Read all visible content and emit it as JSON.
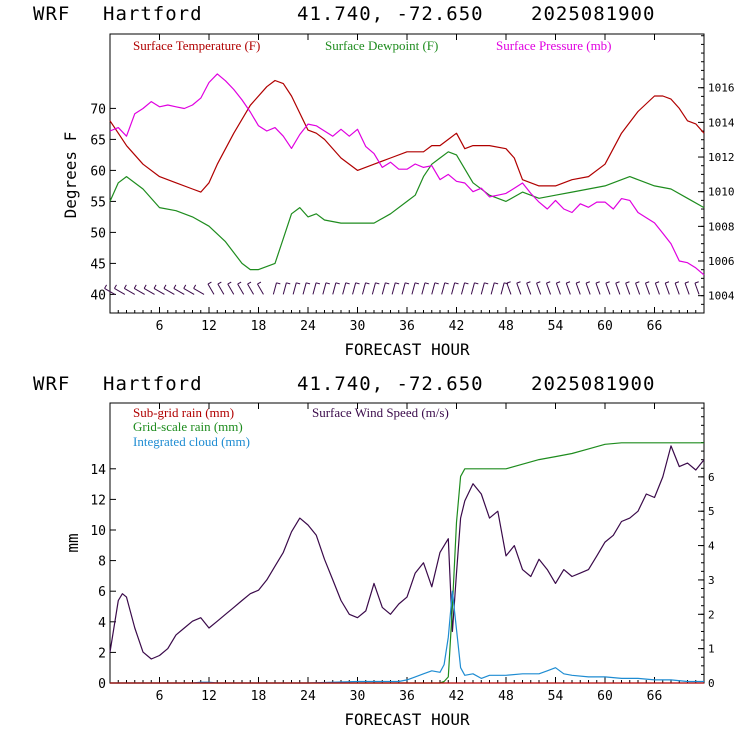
{
  "chart_data": [
    {
      "type": "line",
      "header": {
        "model": "WRF",
        "location": "Hartford",
        "coords": "41.740, -72.650",
        "date": "2025081900"
      },
      "xlabel": "FORECAST HOUR",
      "ylabel": "Degrees F",
      "y2label": "",
      "xlim": [
        0,
        72
      ],
      "ylim": [
        37,
        82
      ],
      "y2lim": [
        1003,
        1019.1
      ],
      "x_ticks": [
        6,
        12,
        18,
        24,
        30,
        36,
        42,
        48,
        54,
        60,
        66
      ],
      "y_ticks": [
        40,
        45,
        50,
        55,
        60,
        65,
        70
      ],
      "y2_ticks": [
        1004,
        1006,
        1008,
        1010,
        1012,
        1014,
        1016
      ],
      "legend": [
        {
          "name": "Surface Temperature (F)",
          "color": "#b00000"
        },
        {
          "name": "Surface Dewpoint (F)",
          "color": "#1e8c1e"
        },
        {
          "name": "Surface Pressure (mb)",
          "color": "#e000e0"
        }
      ],
      "series": [
        {
          "name": "Surface Temperature (F)",
          "axis": "left",
          "color": "#b00000",
          "x": [
            0,
            1,
            2,
            4,
            6,
            8,
            10,
            11,
            12,
            13,
            15,
            17,
            19,
            20,
            21,
            22,
            24,
            25,
            26,
            28,
            30,
            32,
            34,
            36,
            38,
            39,
            40,
            41,
            42,
            43,
            44,
            46,
            48,
            49,
            50,
            52,
            54,
            56,
            58,
            60,
            62,
            64,
            66,
            67,
            68,
            69,
            70,
            71,
            72
          ],
          "y": [
            68,
            66,
            64,
            61,
            59,
            58,
            57,
            56.5,
            58,
            61,
            66,
            70.5,
            73.5,
            74.5,
            74,
            72,
            66.5,
            66,
            65,
            62,
            60,
            61,
            62,
            63,
            63,
            64,
            64,
            65,
            66,
            63.5,
            64,
            64,
            63.5,
            62,
            58.5,
            57.5,
            57.5,
            58.5,
            59,
            61,
            66,
            69.5,
            72,
            72,
            71.5,
            70,
            68,
            67.5,
            66
          ]
        },
        {
          "name": "Surface Dewpoint (F)",
          "axis": "left",
          "color": "#1e8c1e",
          "x": [
            0,
            1,
            2,
            4,
            6,
            8,
            10,
            12,
            14,
            16,
            17,
            18,
            20,
            21,
            22,
            23,
            24,
            25,
            26,
            28,
            30,
            32,
            34,
            36,
            37,
            38,
            39,
            40,
            41,
            42,
            44,
            46,
            48,
            50,
            52,
            54,
            56,
            58,
            60,
            62,
            63,
            64,
            66,
            68,
            70,
            72
          ],
          "y": [
            55,
            58,
            59,
            57,
            54,
            53.5,
            52.5,
            51,
            48.5,
            45,
            44,
            44,
            45,
            49,
            53,
            54,
            52.5,
            53,
            52,
            51.5,
            51.5,
            51.5,
            53,
            55,
            56,
            59,
            61,
            62,
            63,
            62.5,
            58,
            56,
            55,
            56.5,
            55.5,
            56,
            56.5,
            57,
            57.5,
            58.5,
            59,
            58.5,
            57.5,
            57,
            55.5,
            54
          ]
        },
        {
          "name": "Surface Pressure (mb)",
          "axis": "right",
          "color": "#e000e0",
          "x": [
            0,
            1,
            2,
            3,
            4,
            5,
            6,
            7,
            8,
            9,
            10,
            11,
            12,
            13,
            14,
            15,
            16,
            17,
            18,
            19,
            20,
            21,
            22,
            23,
            24,
            25,
            26,
            27,
            28,
            29,
            30,
            31,
            32,
            33,
            34,
            35,
            36,
            37,
            38,
            39,
            40,
            41,
            42,
            43,
            44,
            45,
            46,
            47,
            48,
            49,
            50,
            51,
            52,
            53,
            54,
            55,
            56,
            57,
            58,
            59,
            60,
            61,
            62,
            63,
            64,
            65,
            66,
            67,
            68,
            69,
            70,
            71,
            72
          ],
          "y": [
            1013.5,
            1013.7,
            1013.2,
            1014.5,
            1014.8,
            1015.2,
            1014.9,
            1015.0,
            1014.9,
            1014.8,
            1015.0,
            1015.4,
            1016.3,
            1016.8,
            1016.4,
            1015.9,
            1015.3,
            1014.6,
            1013.8,
            1013.5,
            1013.7,
            1013.2,
            1012.5,
            1013.3,
            1013.9,
            1013.8,
            1013.5,
            1013.2,
            1013.6,
            1013.2,
            1013.6,
            1012.6,
            1012.2,
            1011.4,
            1011.7,
            1011.3,
            1011.3,
            1011.6,
            1011.4,
            1011.5,
            1010.7,
            1011.0,
            1010.6,
            1010.5,
            1010.0,
            1010.2,
            1009.7,
            1009.8,
            1009.9,
            1010.2,
            1010.5,
            1009.9,
            1009.4,
            1009.0,
            1009.5,
            1009.0,
            1008.8,
            1009.3,
            1009.1,
            1009.4,
            1009.4,
            1009.0,
            1009.6,
            1009.5,
            1008.8,
            1008.5,
            1008.2,
            1007.6,
            1007.0,
            1006.0,
            1005.9,
            1005.6,
            1005.2
          ]
        }
      ],
      "wind_barbs": {
        "y_level": 40,
        "count": 60
      }
    },
    {
      "type": "line",
      "header": {
        "model": "WRF",
        "location": "Hartford",
        "coords": "41.740, -72.650",
        "date": "2025081900"
      },
      "xlabel": "FORECAST HOUR",
      "ylabel": "mm",
      "y2label": "",
      "xlim": [
        0,
        72
      ],
      "ylim": [
        0,
        18.3
      ],
      "y2lim": [
        0,
        8.15
      ],
      "x_ticks": [
        6,
        12,
        18,
        24,
        30,
        36,
        42,
        48,
        54,
        60,
        66
      ],
      "y_ticks": [
        0,
        2,
        4,
        6,
        8,
        10,
        12,
        14
      ],
      "y2_ticks": [
        0,
        1,
        2,
        3,
        4,
        5,
        6
      ],
      "legend": [
        {
          "name": "Sub-grid rain (mm)",
          "color": "#b00000"
        },
        {
          "name": "Grid-scale rain (mm)",
          "color": "#1e8c1e"
        },
        {
          "name": "Integrated cloud (mm)",
          "color": "#1e8cd2"
        },
        {
          "name": "Surface Wind Speed (m/s)",
          "color": "#3a0a4a"
        }
      ],
      "series": [
        {
          "name": "Surface Wind Speed (m/s)",
          "axis": "right",
          "color": "#3a0a4a",
          "x": [
            0,
            1,
            1.5,
            2,
            3,
            4,
            5,
            6,
            7,
            8,
            9,
            10,
            11,
            12,
            13,
            14,
            15,
            16,
            17,
            18,
            19,
            20,
            21,
            22,
            23,
            24,
            25,
            26,
            27,
            28,
            29,
            30,
            31,
            32,
            33,
            34,
            35,
            36,
            37,
            38,
            39,
            40,
            41,
            41.5,
            42,
            42.5,
            43,
            44,
            45,
            46,
            47,
            48,
            49,
            50,
            51,
            52,
            53,
            54,
            55,
            56,
            57,
            58,
            59,
            60,
            61,
            62,
            63,
            64,
            65,
            66,
            67,
            68,
            69,
            70,
            71,
            72
          ],
          "y": [
            0.9,
            2.4,
            2.6,
            2.5,
            1.6,
            0.9,
            0.7,
            0.8,
            1.0,
            1.4,
            1.6,
            1.8,
            1.9,
            1.6,
            1.8,
            2.0,
            2.2,
            2.4,
            2.6,
            2.7,
            3.0,
            3.4,
            3.8,
            4.4,
            4.8,
            4.6,
            4.3,
            3.6,
            3.0,
            2.4,
            2.0,
            1.9,
            2.1,
            2.9,
            2.2,
            2.0,
            2.3,
            2.5,
            3.2,
            3.5,
            2.8,
            3.8,
            4.2,
            1.5,
            3.2,
            4.8,
            5.3,
            5.8,
            5.5,
            4.8,
            5.0,
            3.7,
            4.0,
            3.3,
            3.1,
            3.6,
            3.3,
            2.9,
            3.3,
            3.1,
            3.2,
            3.3,
            3.7,
            4.1,
            4.3,
            4.7,
            4.8,
            5.0,
            5.5,
            5.4,
            6.0,
            6.9,
            6.3,
            6.4,
            6.2,
            6.5
          ]
        },
        {
          "name": "Grid-scale rain (mm)",
          "axis": "left",
          "color": "#1e8c1e",
          "x": [
            0,
            40,
            40.5,
            41,
            41.5,
            42,
            42.5,
            43,
            44,
            48,
            50,
            52,
            54,
            56,
            58,
            60,
            62,
            64,
            66,
            68,
            70,
            72
          ],
          "y": [
            0,
            0,
            0.1,
            0.4,
            5.0,
            10.5,
            13.5,
            14.0,
            14.0,
            14.0,
            14.3,
            14.6,
            14.8,
            15.0,
            15.3,
            15.6,
            15.7,
            15.7,
            15.7,
            15.7,
            15.7,
            15.7
          ]
        },
        {
          "name": "Integrated cloud (mm)",
          "axis": "left",
          "color": "#1e8cd2",
          "x": [
            0,
            10,
            11,
            12,
            13,
            14,
            24,
            30,
            35,
            36,
            37,
            38,
            39,
            40,
            40.5,
            41,
            41.5,
            42,
            42.5,
            43,
            44,
            45,
            46,
            48,
            50,
            52,
            53,
            54,
            55,
            56,
            58,
            60,
            62,
            64,
            66,
            68,
            70,
            72
          ],
          "y": [
            0,
            0,
            0.05,
            0.05,
            0,
            0,
            0,
            0.1,
            0.1,
            0.2,
            0.4,
            0.6,
            0.8,
            0.7,
            1.2,
            3.0,
            6.0,
            3.5,
            1.0,
            0.5,
            0.6,
            0.3,
            0.5,
            0.5,
            0.6,
            0.6,
            0.8,
            1.0,
            0.6,
            0.5,
            0.4,
            0.4,
            0.3,
            0.3,
            0.2,
            0.2,
            0.1,
            0.1
          ]
        },
        {
          "name": "Sub-grid rain (mm)",
          "axis": "left",
          "color": "#b00000",
          "x": [
            0,
            72
          ],
          "y": [
            0,
            0
          ]
        }
      ]
    }
  ]
}
